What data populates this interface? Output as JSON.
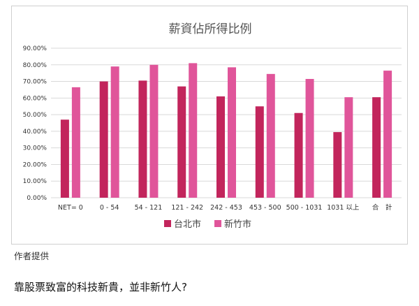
{
  "chart_data": {
    "type": "bar",
    "title": "薪資佔所得比例",
    "categories": [
      "NET= 0",
      "0 - 54",
      "54 - 121",
      "121 - 242",
      "242 - 453",
      "453 - 500",
      "500 - 1031",
      "1031 以上",
      "合　計"
    ],
    "series": [
      {
        "name": "台北市",
        "color": "#c2255c",
        "values": [
          47,
          70,
          70.5,
          67,
          61,
          55,
          51,
          39.5,
          60.5
        ]
      },
      {
        "name": "新竹市",
        "color": "#e0559a",
        "values": [
          66.5,
          79,
          80,
          81,
          78.5,
          74.5,
          71.5,
          60.5,
          76.5
        ]
      }
    ],
    "ylim": [
      0,
      90
    ],
    "yticks": [
      "0.00%",
      "10.00%",
      "20.00%",
      "30.00%",
      "40.00%",
      "50.00%",
      "60.00%",
      "70.00%",
      "80.00%",
      "90.00%"
    ],
    "grid": true,
    "legend": "bottom"
  },
  "caption": "作者提供",
  "headline": "靠股票致富的科技新貴，並非新竹人?"
}
